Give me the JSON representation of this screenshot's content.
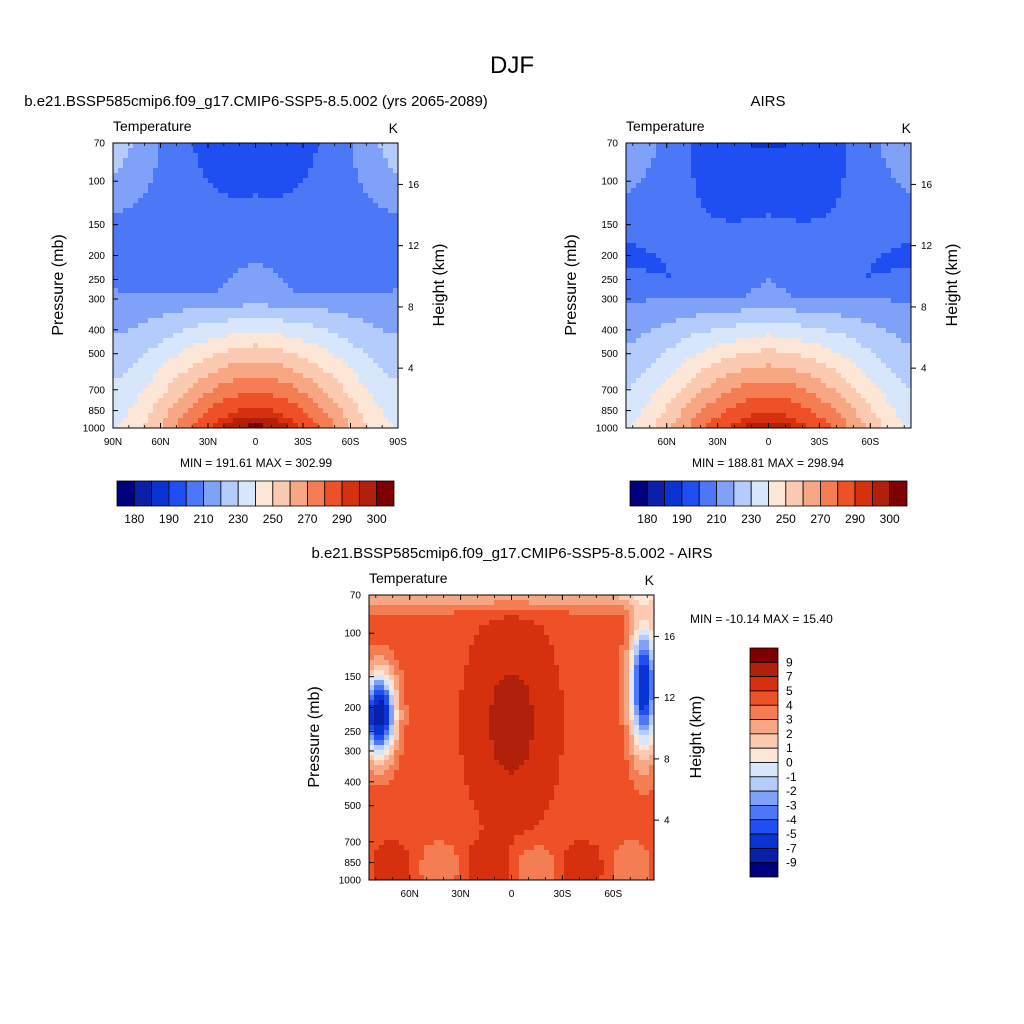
{
  "page_title": "DJF",
  "chart_data": [
    {
      "type": "heatmap",
      "id": "model",
      "title": "b.e21.BSSP585cmip6.f09_g17.CMIP6-SSP5-8.5.002 (yrs 2065-2089)",
      "left_label": "Temperature",
      "right_label": "K",
      "xlabel": "",
      "ylabel": "Pressure (mb)",
      "y2label": "Height (km)",
      "x_ticks": [
        "90N",
        "60N",
        "30N",
        "0",
        "30S",
        "60S",
        "90S"
      ],
      "y_ticks": [
        "70",
        "100",
        "150",
        "200",
        "250",
        "300",
        "400",
        "500",
        "700",
        "850",
        "1000"
      ],
      "y2_ticks": [
        "16",
        "12",
        "8",
        "4"
      ],
      "min_max": "MIN = 191.61  MAX = 302.99",
      "colorbar_labels": [
        "180",
        "190",
        "210",
        "230",
        "250",
        "270",
        "290",
        "300"
      ],
      "surface_temp_equator": 302.99,
      "min_value": 191.61,
      "max_value": 302.99
    },
    {
      "type": "heatmap",
      "id": "obs",
      "title": "AIRS",
      "left_label": "Temperature",
      "right_label": "K",
      "xlabel": "",
      "ylabel": "Pressure (mb)",
      "y2label": "Height (km)",
      "x_ticks": [
        "60N",
        "30N",
        "0",
        "30S",
        "60S"
      ],
      "y_ticks": [
        "70",
        "100",
        "150",
        "200",
        "250",
        "300",
        "400",
        "500",
        "700",
        "850",
        "1000"
      ],
      "y2_ticks": [
        "16",
        "12",
        "8",
        "4"
      ],
      "min_max": "MIN = 188.81  MAX = 298.94",
      "colorbar_labels": [
        "180",
        "190",
        "210",
        "230",
        "250",
        "270",
        "290",
        "300"
      ],
      "min_value": 188.81,
      "max_value": 298.94
    },
    {
      "type": "heatmap",
      "id": "diff",
      "title": "b.e21.BSSP585cmip6.f09_g17.CMIP6-SSP5-8.5.002 - AIRS",
      "left_label": "Temperature",
      "right_label": "K",
      "xlabel": "",
      "ylabel": "Pressure (mb)",
      "y2label": "Height (km)",
      "x_ticks": [
        "60N",
        "30N",
        "0",
        "30S",
        "60S"
      ],
      "y_ticks": [
        "70",
        "100",
        "150",
        "200",
        "250",
        "300",
        "400",
        "500",
        "700",
        "850",
        "1000"
      ],
      "y2_ticks": [
        "16",
        "12",
        "8",
        "4"
      ],
      "min_max": "MIN = -10.14  MAX =  15.40",
      "colorbar_labels": [
        "9",
        "7",
        "5",
        "4",
        "3",
        "2",
        "1",
        "0",
        "-1",
        "-2",
        "-3",
        "-4",
        "-5",
        "-7",
        "-9"
      ],
      "min_value": -10.14,
      "max_value": 15.4
    }
  ],
  "palette": [
    "#00007f",
    "#0a1fa8",
    "#0a33d4",
    "#1f4ff2",
    "#4c78f7",
    "#7fa2f8",
    "#b3ccfb",
    "#d8e6fc",
    "#fde6d6",
    "#fbcab0",
    "#f8a785",
    "#f47d54",
    "#ee5028",
    "#d6300f",
    "#b0200b",
    "#7f0000"
  ]
}
